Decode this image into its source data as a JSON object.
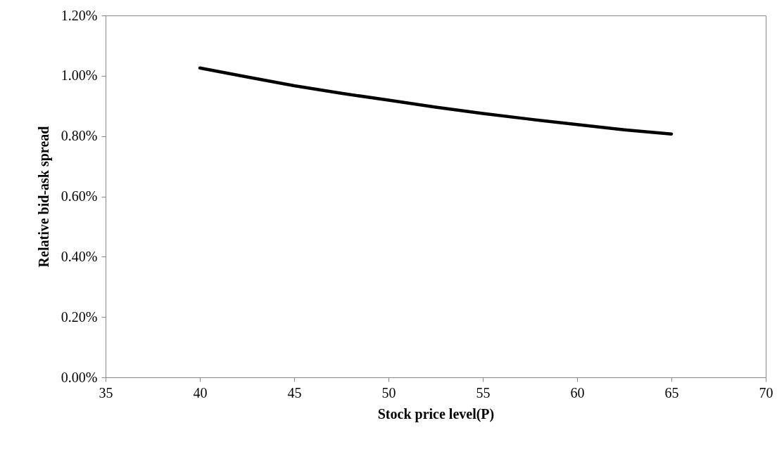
{
  "chart_data": {
    "type": "line",
    "xlabel": "Stock price level(P)",
    "ylabel": "Relative bid-ask spread",
    "x": [
      40,
      42.5,
      45,
      47.5,
      50,
      52.5,
      55,
      57.5,
      60,
      62.5,
      65
    ],
    "series": [
      {
        "color": "#000000",
        "values": [
          1.026,
          0.996,
          0.967,
          0.942,
          0.919,
          0.896,
          0.875,
          0.856,
          0.838,
          0.821,
          0.807
        ]
      }
    ],
    "xlim": [
      35,
      70
    ],
    "xticks": [
      35,
      40,
      45,
      50,
      55,
      60,
      65,
      70
    ],
    "ylim": [
      0,
      1.2
    ],
    "yticks": [
      {
        "value": 0,
        "label": "0.00%"
      },
      {
        "value": 0.2,
        "label": "0.20%"
      },
      {
        "value": 0.4,
        "label": "0.40%"
      },
      {
        "value": 0.6,
        "label": "0.60%"
      },
      {
        "value": 0.8,
        "label": "0.80%"
      },
      {
        "value": 1.0,
        "label": "1.00%"
      },
      {
        "value": 1.2,
        "label": "1.20%"
      }
    ],
    "grid": false,
    "marker": "none",
    "line_style": "solid"
  }
}
